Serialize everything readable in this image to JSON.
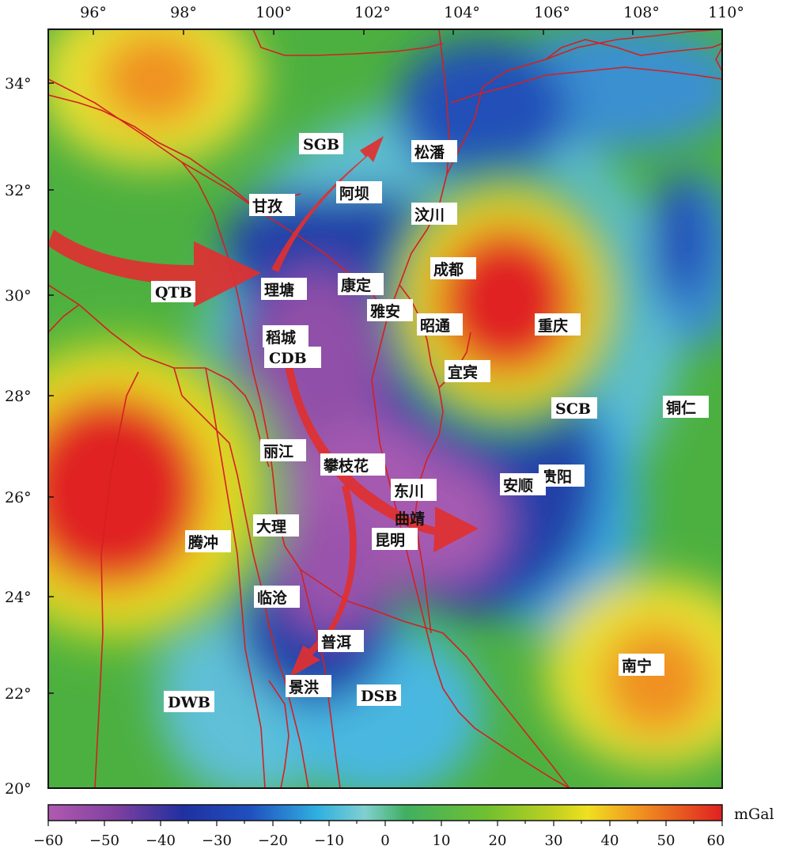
{
  "map": {
    "x_ticks": [
      "96°",
      "98°",
      "100°",
      "102°",
      "104°",
      "106°",
      "108°",
      "110°"
    ],
    "y_ticks": [
      "34°",
      "32°",
      "30°",
      "28°",
      "26°",
      "24°",
      "22°",
      "20°"
    ],
    "places": {
      "sgb": "SGB",
      "songpan": "松潘",
      "aba": "阿坝",
      "ganzi": "甘孜",
      "wenchuan": "汶川",
      "chengdu": "成都",
      "qtb": "QTB",
      "litang": "理塘",
      "kangding": "康定",
      "yaan": "雅安",
      "zhaotong": "昭通",
      "chongqing": "重庆",
      "daocheng": "稻城",
      "cdb": "CDB",
      "yibin": "宜宾",
      "scb": "SCB",
      "tongren": "铜仁",
      "lijiang": "丽江",
      "panzhihua": "攀枝花",
      "guiyang": "贵阳",
      "dongchuan": "东川",
      "anshun": "安顺",
      "dali": "大理",
      "qujing": "曲靖",
      "tengchong": "腾冲",
      "kunming": "昆明",
      "lincang": "临沧",
      "puer": "普洱",
      "nanning": "南宁",
      "jinghong": "景洪",
      "dwb": "DWB",
      "dsb": "DSB"
    },
    "colors": {
      "fault": "#d42020",
      "arrow": "#e03030"
    }
  },
  "colorbar": {
    "unit": "mGal",
    "ticks": [
      "−60",
      "−50",
      "−40",
      "−30",
      "−20",
      "−10",
      "0",
      "10",
      "20",
      "30",
      "40",
      "50",
      "60"
    ],
    "range": [
      -60,
      60
    ],
    "stops": [
      "#b05ab0",
      "#2030a0",
      "#30b0e0",
      "#40b050",
      "#80c020",
      "#f0e020",
      "#f09020",
      "#e02020"
    ]
  }
}
